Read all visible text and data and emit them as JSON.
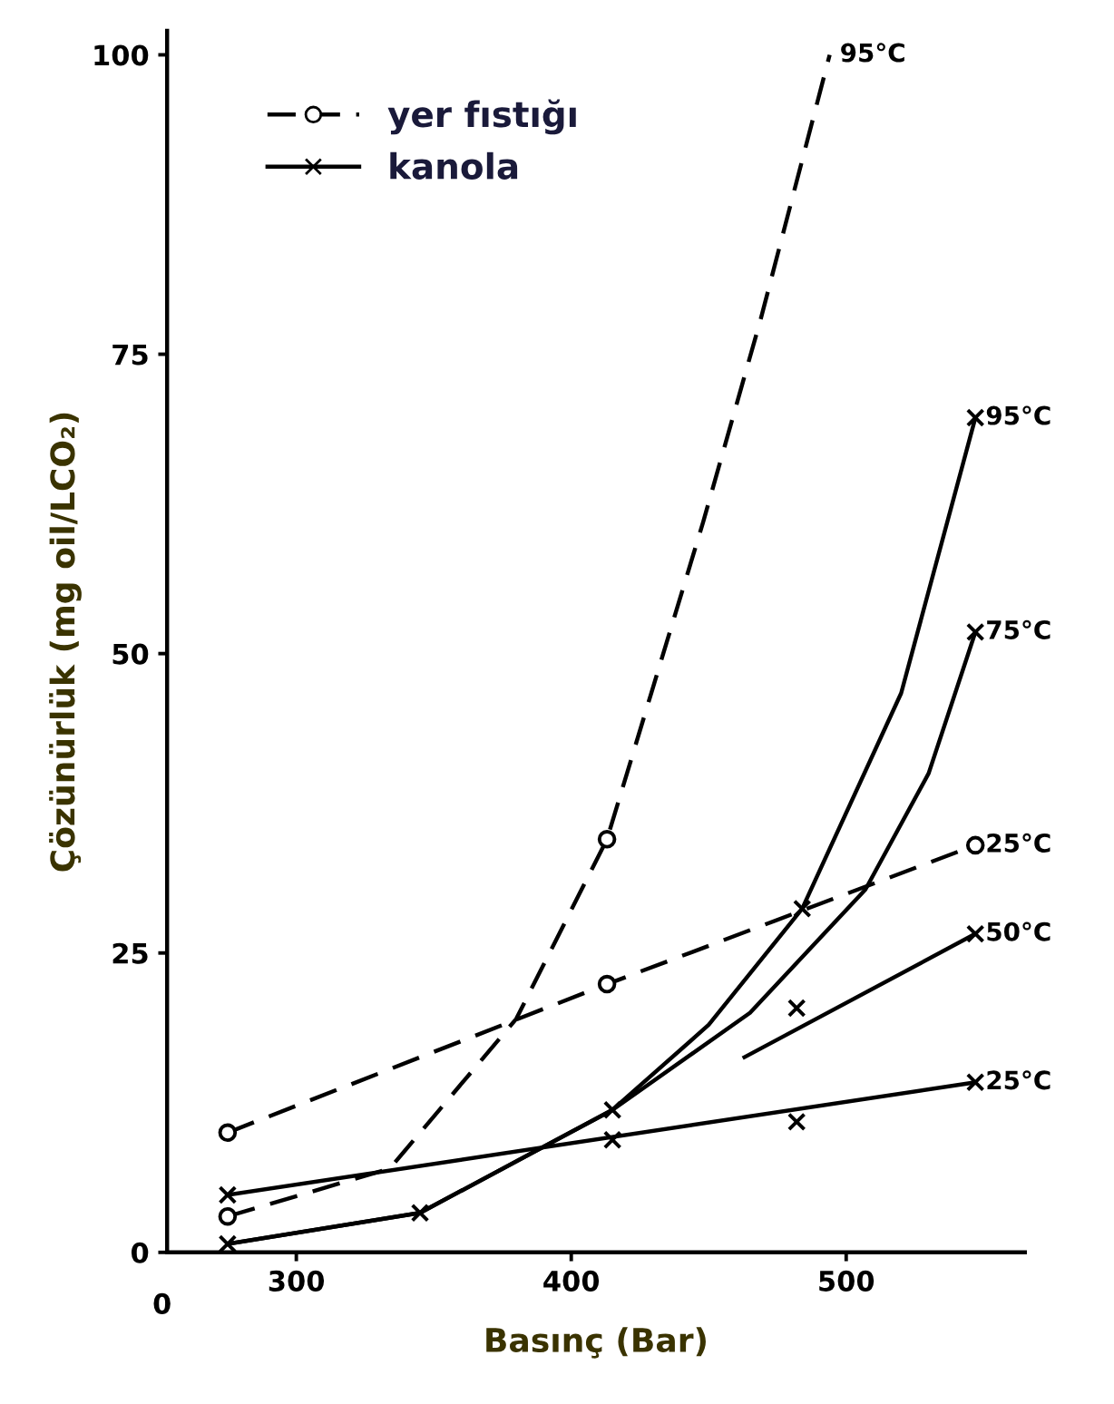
{
  "chart_data": {
    "type": "line",
    "xlabel": "Basınç (Bar)",
    "ylabel": "Çözünürlük (mg oil/LCO₂)",
    "xlim": [
      253,
      565
    ],
    "xticks": [
      300,
      400,
      500
    ],
    "ylim": [
      0,
      102
    ],
    "yticks": [
      0,
      25,
      50,
      75,
      100
    ],
    "grid": false,
    "legend": "top left",
    "annotations": [
      "0"
    ],
    "series": [
      {
        "name": "yer fıstığı",
        "type": "scatter",
        "marker": "circle",
        "line_style": "dashed",
        "color": "#000000",
        "x": [
          275,
          275,
          413,
          413,
          547
        ],
        "values": [
          10,
          3,
          22.4,
          34.5,
          34
        ]
      },
      {
        "name": "kanola",
        "type": "scatter",
        "marker": "cross",
        "line_style": "solid",
        "color": "#000000",
        "x": [
          275,
          275,
          345,
          415,
          415,
          482,
          482,
          484,
          547,
          547,
          547,
          547
        ],
        "values": [
          4.8,
          0.7,
          3.3,
          11.9,
          9.4,
          10.9,
          20.4,
          28.7,
          14.2,
          26.6,
          51.8,
          69.7
        ]
      },
      {
        "name": "95°C",
        "line_style": "dashed",
        "color": "#000000",
        "x": [
          275,
          334,
          380,
          413,
          448,
          469,
          494
        ],
        "values": [
          3,
          7,
          19.5,
          34.5,
          61,
          78,
          100
        ]
      },
      {
        "name": "25°C",
        "line_style": "dashed",
        "color": "#000000",
        "x": [
          275,
          413,
          547
        ],
        "values": [
          10,
          22.4,
          34
        ]
      },
      {
        "name": "95°C",
        "line_style": "solid",
        "color": "#000000",
        "x": [
          275,
          345,
          415,
          450,
          484,
          520,
          547
        ],
        "values": [
          0.7,
          3.3,
          11.9,
          19,
          28.7,
          46.7,
          69.7
        ]
      },
      {
        "name": "75°C",
        "line_style": "solid",
        "color": "#000000",
        "x": [
          275,
          345,
          415,
          465,
          507,
          530,
          547
        ],
        "values": [
          0.7,
          3.3,
          11.9,
          20,
          30.3,
          40,
          51.8
        ]
      },
      {
        "name": "50°C",
        "line_style": "solid",
        "color": "#000000",
        "x": [
          463,
          547
        ],
        "values": [
          16.3,
          26.6
        ]
      },
      {
        "name": "25°C",
        "line_style": "solid",
        "color": "#000000",
        "x": [
          275,
          547
        ],
        "values": [
          4.8,
          14.2
        ]
      }
    ]
  }
}
